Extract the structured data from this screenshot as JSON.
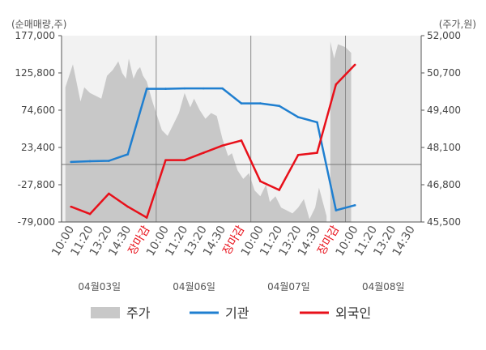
{
  "chart_data": {
    "type": "line",
    "y_left_label": "(순매매량,주)",
    "y_right_label": "(주가,원)",
    "y_left_ticks": [
      "177,000",
      "125,800",
      "74,600",
      "23,400",
      "-27,800",
      "-79,000"
    ],
    "y_right_ticks": [
      "52,000",
      "50,700",
      "49,400",
      "48,100",
      "46,800",
      "45,500"
    ],
    "ylim_left": [
      -79000,
      177000
    ],
    "ylim_right": [
      45500,
      52000
    ],
    "x_tick_labels": [
      {
        "text": "10:00",
        "red": false
      },
      {
        "text": "11:20",
        "red": false
      },
      {
        "text": "13:20",
        "red": false
      },
      {
        "text": "14:30",
        "red": false
      },
      {
        "text": "장마감",
        "red": true
      },
      {
        "text": "10:00",
        "red": false
      },
      {
        "text": "11:20",
        "red": false
      },
      {
        "text": "13:20",
        "red": false
      },
      {
        "text": "14:30",
        "red": false
      },
      {
        "text": "장마감",
        "red": true
      },
      {
        "text": "10:00",
        "red": false
      },
      {
        "text": "11:20",
        "red": false
      },
      {
        "text": "13:20",
        "red": false
      },
      {
        "text": "14:30",
        "red": false
      },
      {
        "text": "장마감",
        "red": true
      },
      {
        "text": "10:00",
        "red": false
      },
      {
        "text": "11:20",
        "red": false
      },
      {
        "text": "13:20",
        "red": false
      },
      {
        "text": "14:30",
        "red": false
      }
    ],
    "x_date_labels": [
      "04월03일",
      "04월06일",
      "04월07일",
      "04월08일"
    ],
    "series": [
      {
        "name": "기관",
        "axis": "left",
        "color": "#1f7fd0",
        "values": [
          3500,
          4500,
          5000,
          14000,
          104000,
          104000,
          104500,
          104500,
          104500,
          84000,
          84000,
          80500,
          65000,
          58000,
          -63000,
          -56000
        ]
      },
      {
        "name": "외국인",
        "axis": "left",
        "color": "#e8101a",
        "values": [
          -58000,
          -68000,
          -40000,
          -58000,
          -73000,
          6000,
          6000,
          16000,
          26000,
          33000,
          -23000,
          -35000,
          13000,
          16000,
          110000,
          137000
        ]
      }
    ],
    "price_area": {
      "name": "주가",
      "axis": "right",
      "color": "#c8c8c8",
      "x_points": [
        0.2,
        0.6,
        1.0,
        1.2,
        1.5,
        1.8,
        2.1,
        2.4,
        2.7,
        3.0,
        3.2,
        3.4,
        3.55,
        3.8,
        4.0,
        4.15,
        4.3,
        4.5,
        4.8,
        5.0,
        5.3,
        5.6,
        5.9,
        6.2,
        6.5,
        6.8,
        7.0,
        7.3,
        7.6,
        7.9,
        8.2,
        8.5,
        8.8,
        9.0,
        9.3,
        9.6,
        9.9,
        10.2,
        10.5,
        10.8,
        11.0,
        11.3,
        11.6,
        11.9,
        12.2,
        12.5,
        12.8,
        13.1,
        13.4,
        13.6,
        13.8,
        14.0,
        14.2,
        14.4,
        14.6,
        15.0,
        15.3
      ],
      "values": [
        50200,
        51000,
        49700,
        50200,
        50000,
        49900,
        49800,
        50600,
        50800,
        51100,
        50700,
        50500,
        51200,
        50500,
        50800,
        50900,
        50600,
        50400,
        49700,
        49300,
        48700,
        48500,
        48900,
        49300,
        50000,
        49500,
        49800,
        49400,
        49100,
        49300,
        49200,
        48400,
        47800,
        47900,
        47300,
        47000,
        47200,
        46600,
        46400,
        46800,
        46200,
        46400,
        46000,
        45900,
        45800,
        46000,
        46300,
        45600,
        46000,
        46700,
        46200,
        45700,
        51800,
        51200,
        51700,
        51600,
        51400
      ]
    },
    "legend": [
      {
        "name": "주가",
        "kind": "area",
        "color": "#c8c8c8"
      },
      {
        "name": "기관",
        "kind": "line",
        "color": "#1f7fd0"
      },
      {
        "name": "외국인",
        "kind": "line",
        "color": "#e8101a"
      }
    ],
    "legend_position": "bottom"
  }
}
